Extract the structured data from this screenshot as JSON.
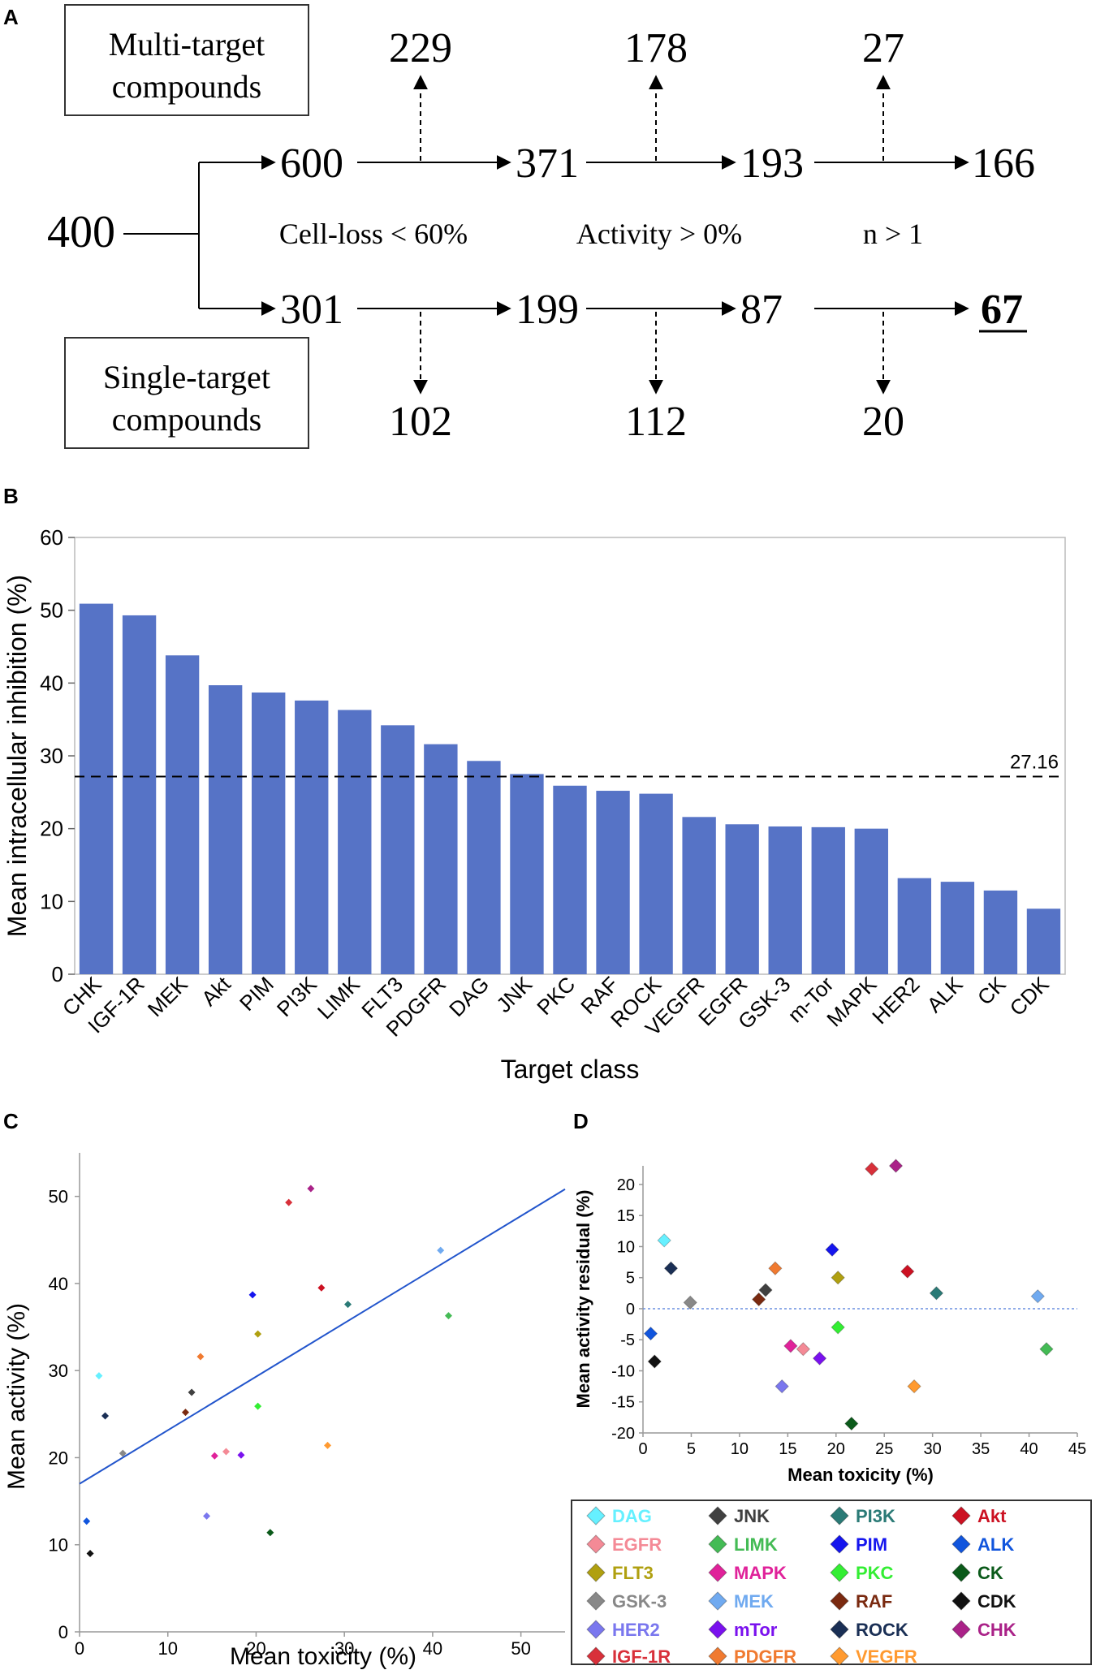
{
  "panel_labels": [
    "A",
    "B",
    "C",
    "D"
  ],
  "flow": {
    "multi_label": [
      "Multi-target",
      "compounds"
    ],
    "single_label": [
      "Single-target",
      "compounds"
    ],
    "start": "400",
    "top_row": [
      "600",
      "371",
      "193",
      "166"
    ],
    "top_removed": [
      "229",
      "178",
      "27"
    ],
    "bottom_row": [
      "301",
      "199",
      "87",
      "67"
    ],
    "bottom_removed": [
      "102",
      "112",
      "20"
    ],
    "criteria": [
      "Cell-loss < 60%",
      "Activity > 0%",
      "n > 1"
    ]
  },
  "chart_data": [
    {
      "panel": "B",
      "type": "bar",
      "title": "",
      "xlabel": "Target class",
      "ylabel": "Mean intracellular inhibition (%)",
      "ylim": [
        0,
        60
      ],
      "yticks": [
        "0",
        "10",
        "20",
        "30",
        "40",
        "50",
        "60"
      ],
      "categories": [
        "CHK",
        "IGF-1R",
        "MEK",
        "Akt",
        "PIM",
        "PI3K",
        "LIMK",
        "FLT3",
        "PDGFR",
        "DAG",
        "JNK",
        "PKC",
        "RAF",
        "ROCK",
        "VEGFR",
        "EGFR",
        "GSK-3",
        "m-Tor",
        "MAPK",
        "HER2",
        "ALK",
        "CK",
        "CDK"
      ],
      "values": [
        50.9,
        49.3,
        43.8,
        39.7,
        38.7,
        37.6,
        36.3,
        34.2,
        31.6,
        29.3,
        27.5,
        25.9,
        25.2,
        24.8,
        21.6,
        20.6,
        20.3,
        20.2,
        20.0,
        13.2,
        12.7,
        11.5,
        9.0
      ],
      "reference_line": {
        "value": 27.16,
        "label": "27.16"
      },
      "bar_color": "#5673c6"
    },
    {
      "panel": "C",
      "type": "scatter",
      "xlabel": "Mean toxicity (%)",
      "ylabel": "Mean activity (%)",
      "xlim": [
        0,
        55
      ],
      "ylim": [
        0,
        55
      ],
      "xticks": [
        "0",
        "10",
        "20",
        "30",
        "40",
        "50"
      ],
      "yticks": [
        "0",
        "10",
        "20",
        "30",
        "40",
        "50"
      ],
      "fit_line": {
        "intercept": 17.0,
        "slope": 0.615
      },
      "fit_color": "#2255cc",
      "points": [
        {
          "name": "DAG",
          "x": 2.2,
          "y": 29.4
        },
        {
          "name": "EGFR",
          "x": 16.6,
          "y": 20.7
        },
        {
          "name": "FLT3",
          "x": 20.2,
          "y": 34.2
        },
        {
          "name": "GSK-3",
          "x": 4.9,
          "y": 20.5
        },
        {
          "name": "HER2",
          "x": 14.4,
          "y": 13.3
        },
        {
          "name": "IGF-1R",
          "x": 23.7,
          "y": 49.3
        },
        {
          "name": "JNK",
          "x": 12.7,
          "y": 27.5
        },
        {
          "name": "LIMK",
          "x": 41.8,
          "y": 36.3
        },
        {
          "name": "MAPK",
          "x": 15.3,
          "y": 20.2
        },
        {
          "name": "MEK",
          "x": 40.9,
          "y": 43.8
        },
        {
          "name": "mTor",
          "x": 18.3,
          "y": 20.3
        },
        {
          "name": "PDGFR",
          "x": 13.7,
          "y": 31.6
        },
        {
          "name": "PI3K",
          "x": 30.4,
          "y": 37.6
        },
        {
          "name": "PIM",
          "x": 19.6,
          "y": 38.7
        },
        {
          "name": "PKC",
          "x": 20.2,
          "y": 25.9
        },
        {
          "name": "RAF",
          "x": 12.0,
          "y": 25.2
        },
        {
          "name": "ROCK",
          "x": 2.9,
          "y": 24.8
        },
        {
          "name": "VEGFR",
          "x": 28.1,
          "y": 21.4
        },
        {
          "name": "Akt",
          "x": 27.4,
          "y": 39.5
        },
        {
          "name": "ALK",
          "x": 0.8,
          "y": 12.7
        },
        {
          "name": "CK",
          "x": 21.6,
          "y": 11.4
        },
        {
          "name": "CDK",
          "x": 1.2,
          "y": 9.0
        },
        {
          "name": "CHK",
          "x": 26.2,
          "y": 50.9
        }
      ]
    },
    {
      "panel": "D",
      "type": "scatter",
      "xlabel": "Mean toxicity (%)",
      "ylabel": "Mean activity residual (%)",
      "xlim": [
        0,
        45
      ],
      "ylim": [
        -20,
        23
      ],
      "xticks": [
        "0",
        "5",
        "10",
        "15",
        "20",
        "25",
        "30",
        "35",
        "40",
        "45"
      ],
      "yticks": [
        "20",
        "15",
        "10",
        "5",
        "0",
        "-5",
        "-10",
        "-15",
        "-20"
      ],
      "zero_line": 0,
      "points": [
        {
          "name": "DAG",
          "x": 2.2,
          "y": 11.0
        },
        {
          "name": "EGFR",
          "x": 16.6,
          "y": -6.5
        },
        {
          "name": "FLT3",
          "x": 20.2,
          "y": 5.0
        },
        {
          "name": "GSK-3",
          "x": 4.9,
          "y": 1.0
        },
        {
          "name": "HER2",
          "x": 14.4,
          "y": -12.5
        },
        {
          "name": "IGF-1R",
          "x": 23.7,
          "y": 22.5
        },
        {
          "name": "JNK",
          "x": 12.7,
          "y": 3.0
        },
        {
          "name": "LIMK",
          "x": 41.8,
          "y": -6.5
        },
        {
          "name": "MAPK",
          "x": 15.3,
          "y": -6.0
        },
        {
          "name": "MEK",
          "x": 40.9,
          "y": 2.0
        },
        {
          "name": "mTor",
          "x": 18.3,
          "y": -8.0
        },
        {
          "name": "PDGFR",
          "x": 13.7,
          "y": 6.5
        },
        {
          "name": "PI3K",
          "x": 30.4,
          "y": 2.5
        },
        {
          "name": "PIM",
          "x": 19.6,
          "y": 9.5
        },
        {
          "name": "PKC",
          "x": 20.2,
          "y": -3.0
        },
        {
          "name": "RAF",
          "x": 12.0,
          "y": 1.5
        },
        {
          "name": "ROCK",
          "x": 2.9,
          "y": 6.5
        },
        {
          "name": "VEGFR",
          "x": 28.1,
          "y": -12.5
        },
        {
          "name": "Akt",
          "x": 27.4,
          "y": 6.0
        },
        {
          "name": "ALK",
          "x": 0.8,
          "y": -4.0
        },
        {
          "name": "CK",
          "x": 21.6,
          "y": -18.5
        },
        {
          "name": "CDK",
          "x": 1.2,
          "y": -8.5
        },
        {
          "name": "CHK",
          "x": 26.2,
          "y": 23.0
        }
      ]
    }
  ],
  "legend": [
    {
      "name": "DAG",
      "color": "#66f0ff"
    },
    {
      "name": "JNK",
      "color": "#404040"
    },
    {
      "name": "PI3K",
      "color": "#2a7a76"
    },
    {
      "name": "Akt",
      "color": "#cc1122"
    },
    {
      "name": "EGFR",
      "color": "#f48a96"
    },
    {
      "name": "LIMK",
      "color": "#44bb55"
    },
    {
      "name": "PIM",
      "color": "#1515ee"
    },
    {
      "name": "ALK",
      "color": "#1155dd"
    },
    {
      "name": "FLT3",
      "color": "#b0a010"
    },
    {
      "name": "MAPK",
      "color": "#e0229a"
    },
    {
      "name": "PKC",
      "color": "#33ee33"
    },
    {
      "name": "CK",
      "color": "#0b5a1a"
    },
    {
      "name": "GSK-3",
      "color": "#888888"
    },
    {
      "name": "MEK",
      "color": "#70aaf0"
    },
    {
      "name": "RAF",
      "color": "#7a2a10"
    },
    {
      "name": "CDK",
      "color": "#111111"
    },
    {
      "name": "HER2",
      "color": "#7a77ee"
    },
    {
      "name": "mTor",
      "color": "#7a11ee"
    },
    {
      "name": "ROCK",
      "color": "#1a2f55"
    },
    {
      "name": "CHK",
      "color": "#aa2288"
    },
    {
      "name": "IGF-1R",
      "color": "#d8303a"
    },
    {
      "name": "PDGFR",
      "color": "#f07a30"
    },
    {
      "name": "VEGFR",
      "color": "#ff9a30"
    }
  ]
}
